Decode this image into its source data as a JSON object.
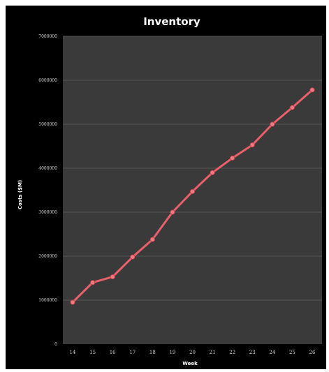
{
  "chart_data": {
    "type": "line",
    "title": "Inventory",
    "xlabel": "Week",
    "ylabel": "Costs ($M)",
    "x": [
      14,
      15,
      16,
      17,
      18,
      19,
      20,
      21,
      22,
      23,
      24,
      25,
      26
    ],
    "series": [
      {
        "values": [
          950000,
          1400000,
          1530000,
          1980000,
          2380000,
          3000000,
          3470000,
          3900000,
          4230000,
          4530000,
          5000000,
          5380000,
          5780000
        ]
      }
    ],
    "yticks": [
      "0",
      "1000000",
      "2000000",
      "3000000",
      "4000000",
      "5000000",
      "6000000",
      "7000000"
    ],
    "ylim": [
      0,
      7000000
    ],
    "grid": true,
    "legend": "none",
    "colors": {
      "background": "#000000",
      "plot_area": "#3a3a3a",
      "gridline": "#555555",
      "line": "#e8606a",
      "marker": "#f07a82",
      "text": "#ffffff"
    }
  }
}
